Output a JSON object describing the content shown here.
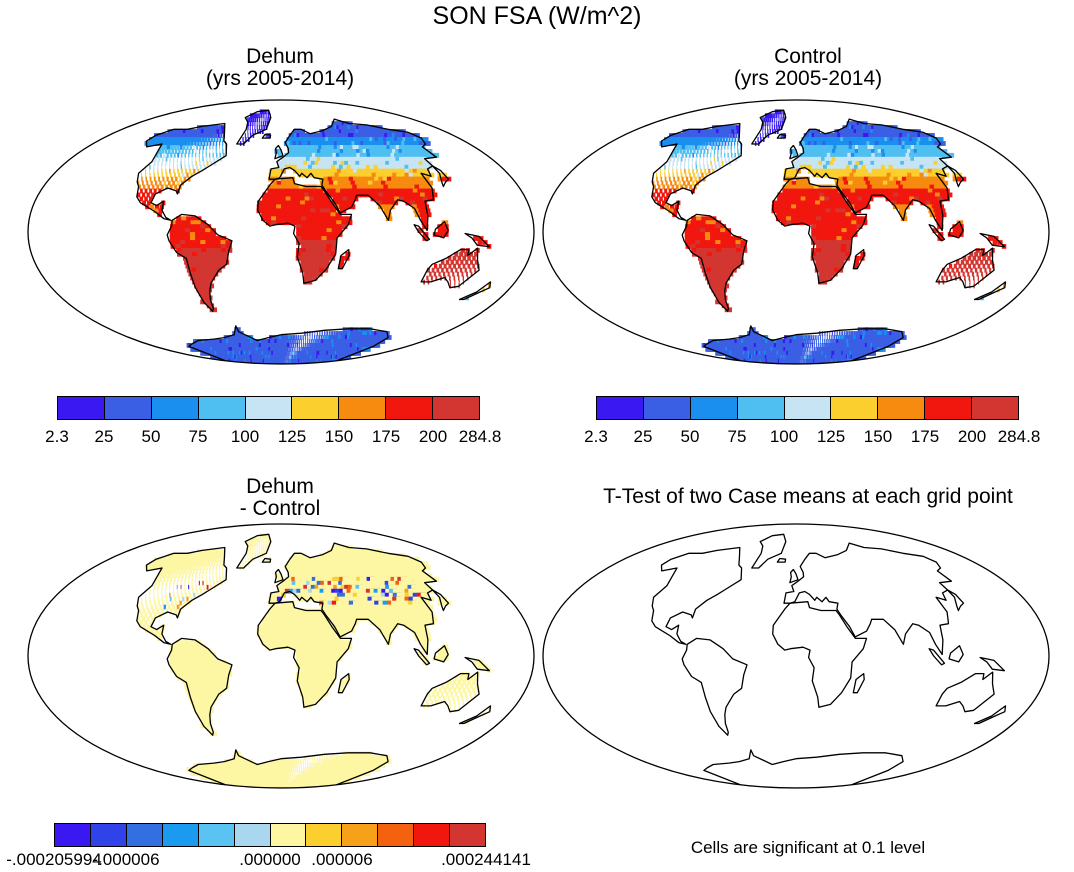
{
  "title": "SON FSA (W/m^2)",
  "panels": [
    {
      "id": "dehum",
      "title_line1": "Dehum",
      "title_line2": "(yrs 2005-2014)"
    },
    {
      "id": "control",
      "title_line1": "Control",
      "title_line2": "(yrs 2005-2014)"
    },
    {
      "id": "diff",
      "title_line1": "Dehum",
      "title_line2": "- Control"
    },
    {
      "id": "ttest",
      "title_line1": "T-Test of two Case means at each grid point"
    }
  ],
  "colorbar_main": {
    "colors": [
      "#3a18f2",
      "#3a5ee4",
      "#1b8fef",
      "#4fbef0",
      "#c6e4f4",
      "#fbcf2e",
      "#f68b0f",
      "#f1170e",
      "#d33530"
    ],
    "labels": [
      "2.3",
      "25",
      "50",
      "75",
      "100",
      "125",
      "150",
      "175",
      "200",
      "284.8"
    ]
  },
  "colorbar_diff": {
    "colors": [
      "#3a18f2",
      "#2f43e9",
      "#3270e2",
      "#1b9bef",
      "#5bc3f1",
      "#a9d7ee",
      "#fdf6a3",
      "#fbcf2e",
      "#f7a11a",
      "#f5620f",
      "#f1170e",
      "#d33530"
    ],
    "labels": [
      "-.000205994",
      "-.000006",
      ".000000",
      ".000006",
      ".000244141"
    ]
  },
  "note": "Cells are significant at 0.1 level"
}
